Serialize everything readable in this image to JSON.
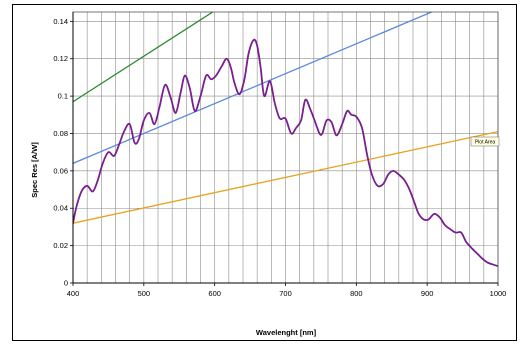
{
  "chart_data": {
    "type": "line",
    "xlabel": "Wavelenght [nm]",
    "ylabel": "Spec Res [A/W]",
    "xlim": [
      400,
      1000
    ],
    "ylim": [
      0,
      0.145
    ],
    "x_ticks": [
      400,
      500,
      600,
      700,
      800,
      900,
      1000
    ],
    "y_ticks": [
      0,
      0.02,
      0.04,
      0.06,
      0.08,
      0.1,
      0.12,
      0.14
    ],
    "x_tick_labels": [
      "400",
      "500",
      "600",
      "700",
      "800",
      "900",
      "1000"
    ],
    "y_tick_labels": [
      "0",
      "0.02",
      "0.04",
      "0.06",
      "0.08",
      "0.1",
      "0.12",
      "0.14"
    ],
    "x_minor_step": 20,
    "grid": true,
    "annotation": "Plot Area",
    "series": [
      {
        "color": "#7a1f8f",
        "curve": "smooth",
        "x": [
          400,
          405,
          412,
          420,
          428,
          435,
          442,
          450,
          458,
          465,
          472,
          480,
          487,
          493,
          500,
          508,
          515,
          522,
          530,
          538,
          545,
          552,
          558,
          565,
          572,
          580,
          588,
          595,
          602,
          610,
          617,
          623,
          628,
          635,
          642,
          648,
          655,
          660,
          665,
          670,
          678,
          685,
          692,
          700,
          708,
          715,
          722,
          728,
          735,
          742,
          748,
          752,
          758,
          765,
          772,
          780,
          787,
          793,
          800,
          808,
          815,
          822,
          830,
          838,
          845,
          852,
          860,
          868,
          875,
          882,
          888,
          895,
          902,
          910,
          918,
          925,
          932,
          940,
          948,
          955,
          962,
          970,
          978,
          985,
          992,
          1000
        ],
        "y": [
          0.032,
          0.041,
          0.049,
          0.052,
          0.049,
          0.055,
          0.064,
          0.07,
          0.068,
          0.074,
          0.081,
          0.085,
          0.075,
          0.077,
          0.087,
          0.091,
          0.085,
          0.094,
          0.106,
          0.099,
          0.091,
          0.102,
          0.111,
          0.104,
          0.092,
          0.1,
          0.111,
          0.109,
          0.111,
          0.116,
          0.12,
          0.115,
          0.107,
          0.101,
          0.109,
          0.123,
          0.13,
          0.127,
          0.115,
          0.1,
          0.108,
          0.096,
          0.088,
          0.088,
          0.08,
          0.083,
          0.087,
          0.098,
          0.093,
          0.086,
          0.08,
          0.08,
          0.087,
          0.086,
          0.079,
          0.085,
          0.092,
          0.09,
          0.089,
          0.083,
          0.069,
          0.058,
          0.052,
          0.053,
          0.058,
          0.06,
          0.058,
          0.055,
          0.05,
          0.043,
          0.037,
          0.034,
          0.034,
          0.037,
          0.035,
          0.031,
          0.029,
          0.027,
          0.027,
          0.022,
          0.019,
          0.016,
          0.013,
          0.011,
          0.01,
          0.009
        ]
      },
      {
        "color": "#e8a320",
        "x": [
          400,
          1000
        ],
        "y": [
          0.032,
          0.081
        ]
      },
      {
        "color": "#5b87e0",
        "x": [
          400,
          1000
        ],
        "y": [
          0.064,
          0.16
        ]
      },
      {
        "color": "#2a8a2a",
        "x": [
          400,
          1000
        ],
        "y": [
          0.097,
          0.243
        ]
      }
    ]
  }
}
